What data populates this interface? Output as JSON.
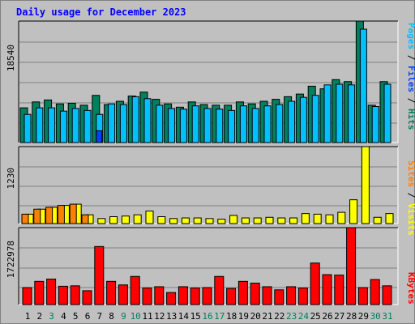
{
  "title": "Daily usage for December 2023",
  "chart_data": [
    {
      "type": "bar",
      "panel": "pages-files-hits",
      "categories": [
        "1",
        "2",
        "3",
        "4",
        "5",
        "6",
        "7",
        "8",
        "9",
        "10",
        "11",
        "12",
        "13",
        "14",
        "15",
        "16",
        "17",
        "18",
        "19",
        "20",
        "21",
        "22",
        "23",
        "24",
        "25",
        "26",
        "27",
        "28",
        "29",
        "30",
        "31"
      ],
      "weekend_days": [
        "9",
        "16",
        "23",
        "30"
      ],
      "highlight_days": [
        "3",
        "10",
        "17",
        "24",
        "31"
      ],
      "y_max_label": "18540",
      "ylim": [
        0,
        18540
      ],
      "legend_words": [
        "Pages",
        "/",
        "Files",
        "/",
        "Hits"
      ],
      "series": [
        {
          "name": "Hits",
          "color": "#00805c",
          "values": [
            5300,
            6200,
            6500,
            5900,
            6000,
            5700,
            7200,
            5800,
            6300,
            7100,
            7700,
            6600,
            5900,
            5400,
            6200,
            5800,
            5700,
            5700,
            6200,
            5900,
            6300,
            6600,
            7000,
            7400,
            8600,
            8200,
            9600,
            9300,
            18540,
            5700,
            9300
          ]
        },
        {
          "name": "Files",
          "color": "#00c0ff",
          "values": [
            4300,
            5300,
            5300,
            4800,
            5200,
            4900,
            4300,
            5900,
            5800,
            7000,
            6700,
            5700,
            5200,
            5100,
            5600,
            5200,
            5100,
            4900,
            5600,
            5200,
            5600,
            5800,
            6300,
            6900,
            7200,
            8800,
            8900,
            8800,
            17300,
            5500,
            8900
          ]
        },
        {
          "name": "Pages",
          "color": "#0040ff",
          "values": [
            0,
            0,
            0,
            0,
            0,
            0,
            1800,
            0,
            0,
            0,
            0,
            0,
            0,
            0,
            0,
            0,
            0,
            0,
            0,
            0,
            0,
            0,
            0,
            0,
            0,
            0,
            0,
            0,
            0,
            0,
            0
          ]
        }
      ]
    },
    {
      "type": "bar",
      "panel": "visits-sites",
      "y_max_label": "1230",
      "ylim": [
        0,
        1230
      ],
      "legend_words": [
        "Sites",
        "/",
        "Visits"
      ],
      "series": [
        {
          "name": "Visits",
          "color": "#ffff00",
          "values": [
            150,
            230,
            260,
            290,
            310,
            140,
            80,
            110,
            120,
            140,
            200,
            110,
            80,
            90,
            90,
            80,
            70,
            130,
            90,
            90,
            100,
            90,
            90,
            160,
            150,
            140,
            180,
            380,
            1230,
            100,
            160
          ]
        },
        {
          "name": "Sites",
          "color": "#ff8000",
          "values": [
            150,
            230,
            260,
            290,
            310,
            140,
            0,
            0,
            0,
            0,
            0,
            0,
            0,
            0,
            0,
            0,
            0,
            0,
            0,
            0,
            0,
            0,
            0,
            0,
            0,
            0,
            0,
            0,
            0,
            0,
            0
          ]
        }
      ]
    },
    {
      "type": "bar",
      "panel": "kbytes",
      "y_max_label": "1722978",
      "ylim": [
        0,
        1722978
      ],
      "legend_words": [
        "KBytes"
      ],
      "series": [
        {
          "name": "KBytes",
          "color": "#ff0000",
          "values": [
            380000,
            520000,
            570000,
            410000,
            420000,
            310000,
            1300000,
            520000,
            440000,
            630000,
            370000,
            400000,
            270000,
            400000,
            370000,
            380000,
            630000,
            360000,
            520000,
            480000,
            400000,
            330000,
            400000,
            370000,
            930000,
            670000,
            660000,
            1722978,
            380000,
            560000,
            420000
          ]
        }
      ]
    }
  ]
}
